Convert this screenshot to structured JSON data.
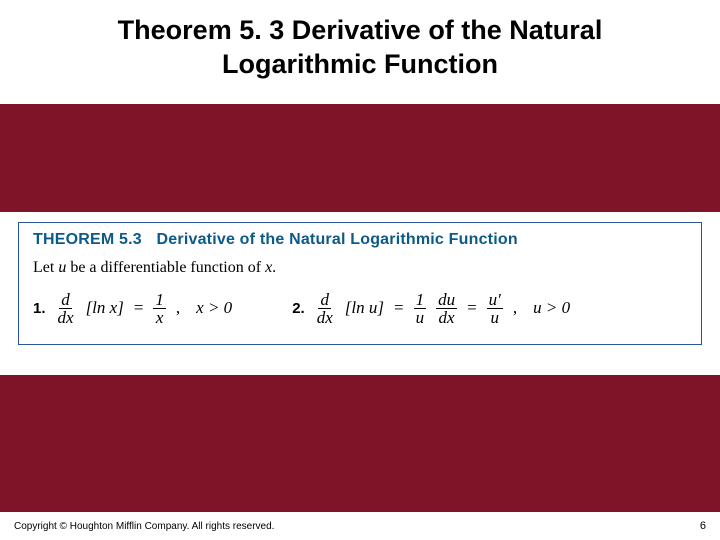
{
  "colors": {
    "slide_bg": "#7f1428",
    "panel_bg": "#ffffff",
    "title_text": "#000000",
    "theorem_border": "#2a54a0",
    "theorem_head_text": "#0b5a8a"
  },
  "title": "Theorem 5. 3 Derivative of the Natural Logarithmic Function",
  "theorem": {
    "label": "THEOREM 5.3",
    "name": "Derivative of the Natural Logarithmic Function",
    "lead_pre": "Let ",
    "lead_var1": "u",
    "lead_mid": " be a differentiable function of ",
    "lead_var2": "x",
    "lead_post": ".",
    "items": [
      {
        "idx": "1.",
        "lhs_num": "d",
        "lhs_den": "dx",
        "lhs_arg": "[ln x]",
        "eq": " = ",
        "rhs_num": "1",
        "rhs_den": "x",
        "comma": ",",
        "cond": "x > 0"
      },
      {
        "idx": "2.",
        "lhs_num": "d",
        "lhs_den": "dx",
        "lhs_arg": "[ln u]",
        "eq": " = ",
        "r1_num": "1",
        "r1_den": "u",
        "r2_num": "du",
        "r2_den": "dx",
        "eq2": " = ",
        "r3_num": "u′",
        "r3_den": "u",
        "comma": ",",
        "cond": "u > 0"
      }
    ]
  },
  "footer": {
    "copyright": "Copyright © Houghton Mifflin Company. All rights reserved.",
    "page": "6"
  }
}
